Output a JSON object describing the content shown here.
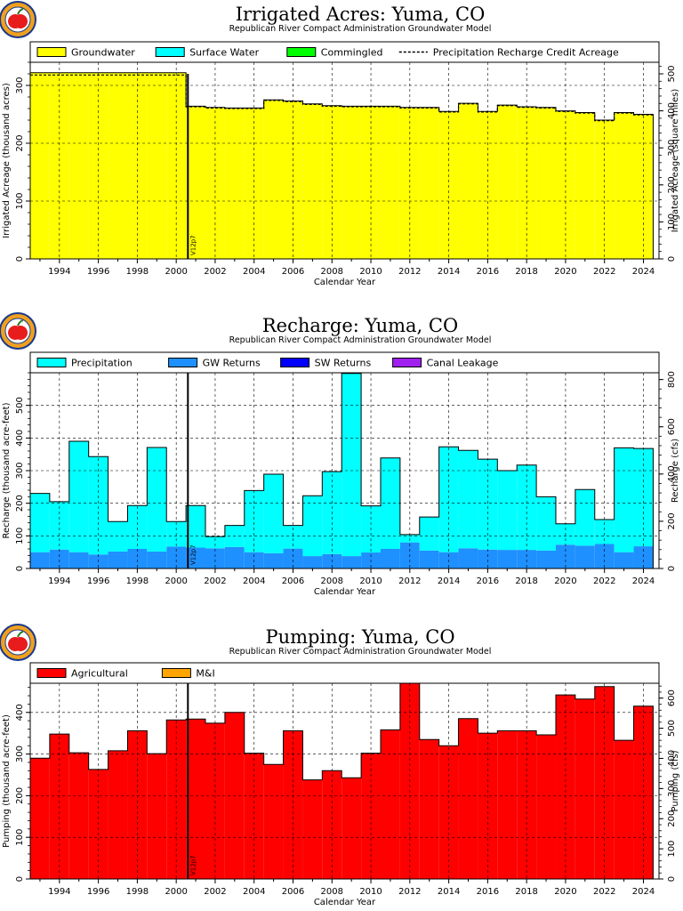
{
  "colors": {
    "groundwater": "#ffff00",
    "surface_water": "#00ffff",
    "commingled": "#00ff00",
    "precipitation": "#00ffff",
    "gw_returns": "#1e90ff",
    "sw_returns": "#0000ff",
    "canal_leakage": "#a020f0",
    "agricultural": "#ff0000",
    "mi": "#ffa500",
    "logo_red": "#e81c1c",
    "logo_ring": "#f0a020",
    "logo_border": "#1a3a8a"
  },
  "logo_icon": "apple-logo-icon",
  "chart_data": [
    {
      "type": "bar",
      "title": "Irrigated Acres: Yuma, CO",
      "subtitle": "Republican River Compact Administration Groundwater Model",
      "xlabel": "Calendar Year",
      "ylabel": "Irrigated Acreage (thousand acres)",
      "y2label": "Irrigated Acreage (square miles)",
      "ylim": [
        0,
        340
      ],
      "yticks": [
        0,
        100,
        200,
        300
      ],
      "y2lim": [
        0,
        531.25
      ],
      "y2ticks": [
        0,
        100,
        200,
        300,
        400,
        500
      ],
      "xlim": [
        1992.5,
        2024.8
      ],
      "xticks": [
        1994,
        1996,
        1998,
        2000,
        2002,
        2004,
        2006,
        2008,
        2010,
        2012,
        2014,
        2016,
        2018,
        2020,
        2022,
        2024
      ],
      "grid": true,
      "legend_position": "top",
      "legend": [
        "Groundwater",
        "Surface Water",
        "Commingled",
        "Precipitation Recharge Credit Acreage"
      ],
      "version_marker": {
        "x": 2000.6,
        "label": "V12p7"
      },
      "x": [
        1993,
        1994,
        1995,
        1996,
        1997,
        1998,
        1999,
        2000,
        2001,
        2002,
        2003,
        2004,
        2005,
        2006,
        2007,
        2008,
        2009,
        2010,
        2011,
        2012,
        2013,
        2014,
        2015,
        2016,
        2017,
        2018,
        2019,
        2020,
        2021,
        2022,
        2023,
        2024
      ],
      "series": [
        {
          "name": "Groundwater",
          "color_key": "groundwater",
          "values": [
            322,
            322,
            322,
            322,
            322,
            322,
            322,
            322,
            264,
            262,
            261,
            261,
            275,
            273,
            268,
            265,
            264,
            264,
            264,
            262,
            262,
            255,
            269,
            255,
            266,
            263,
            262,
            256,
            253,
            240,
            253,
            250
          ]
        },
        {
          "name": "Surface Water",
          "color_key": "surface_water",
          "values": [
            0,
            0,
            0,
            0,
            0,
            0,
            0,
            0,
            0,
            0,
            0,
            0,
            0,
            0,
            0,
            0,
            0,
            0,
            0,
            0,
            0,
            0,
            0,
            0,
            0,
            0,
            0,
            0,
            0,
            0,
            0,
            0
          ]
        },
        {
          "name": "Commingled",
          "color_key": "commingled",
          "values": [
            0,
            0,
            0,
            0,
            0,
            0,
            0,
            0,
            0,
            0,
            0,
            0,
            0,
            0,
            0,
            0,
            0,
            0,
            0,
            0,
            0,
            0,
            0,
            0,
            0,
            0,
            0,
            0,
            0,
            0,
            0,
            0
          ]
        }
      ],
      "line_series": {
        "name": "Precipitation Recharge Credit Acreage",
        "values": [
          318,
          318,
          318,
          318,
          318,
          318,
          318,
          318,
          263,
          261,
          260,
          260,
          274,
          272,
          267,
          264,
          263,
          263,
          263,
          261,
          261,
          254,
          268,
          254,
          265,
          262,
          261,
          255,
          252,
          239,
          252,
          249
        ]
      }
    },
    {
      "type": "bar",
      "title": "Recharge: Yuma, CO",
      "subtitle": "Republican River Compact Administration Groundwater Model",
      "xlabel": "Calendar Year",
      "ylabel": "Recharge (thousand acre-feet)",
      "y2label": "Recharge (cfs)",
      "ylim": [
        0,
        600
      ],
      "yticks": [
        0,
        100,
        200,
        300,
        400,
        500
      ],
      "y2lim": [
        0,
        828.75
      ],
      "y2ticks": [
        0,
        200,
        400,
        600,
        800
      ],
      "xlim": [
        1992.5,
        2024.8
      ],
      "xticks": [
        1994,
        1996,
        1998,
        2000,
        2002,
        2004,
        2006,
        2008,
        2010,
        2012,
        2014,
        2016,
        2018,
        2020,
        2022,
        2024
      ],
      "grid": true,
      "legend_position": "top",
      "legend": [
        "Precipitation",
        "GW Returns",
        "SW Returns",
        "Canal Leakage"
      ],
      "version_marker": {
        "x": 2000.6,
        "label": "V12p7"
      },
      "x": [
        1993,
        1994,
        1995,
        1996,
        1997,
        1998,
        1999,
        2000,
        2001,
        2002,
        2003,
        2004,
        2005,
        2006,
        2007,
        2008,
        2009,
        2010,
        2011,
        2012,
        2013,
        2014,
        2015,
        2016,
        2017,
        2018,
        2019,
        2020,
        2021,
        2022,
        2023,
        2024
      ],
      "series": [
        {
          "name": "GW Returns",
          "color_key": "gw_returns",
          "values": [
            50,
            58,
            50,
            43,
            52,
            60,
            52,
            67,
            64,
            62,
            66,
            50,
            47,
            61,
            38,
            44,
            38,
            49,
            60,
            80,
            55,
            50,
            62,
            58,
            57,
            57,
            55,
            73,
            70,
            75,
            50,
            68
          ]
        },
        {
          "name": "SW Returns",
          "color_key": "sw_returns",
          "values": [
            0,
            0,
            0,
            0,
            0,
            0,
            0,
            0,
            0,
            0,
            0,
            0,
            0,
            0,
            0,
            0,
            0,
            0,
            0,
            0,
            0,
            0,
            0,
            0,
            0,
            0,
            0,
            0,
            0,
            0,
            0,
            0
          ]
        },
        {
          "name": "Canal Leakage",
          "color_key": "canal_leakage",
          "values": [
            0,
            0,
            0,
            0,
            0,
            0,
            0,
            0,
            0,
            0,
            0,
            0,
            0,
            0,
            0,
            0,
            0,
            0,
            0,
            0,
            0,
            0,
            0,
            0,
            0,
            0,
            0,
            0,
            0,
            0,
            0,
            0
          ]
        },
        {
          "name": "Precipitation",
          "color_key": "precipitation",
          "values": [
            180,
            147,
            340,
            300,
            92,
            133,
            319,
            77,
            129,
            36,
            66,
            189,
            242,
            71,
            185,
            253,
            560,
            143,
            279,
            24,
            103,
            323,
            300,
            277,
            243,
            260,
            165,
            64,
            172,
            75,
            320,
            300
          ]
        }
      ]
    },
    {
      "type": "bar",
      "title": "Pumping: Yuma, CO",
      "subtitle": "Republican River Compact Administration Groundwater Model",
      "xlabel": "Calendar Year",
      "ylabel": "Pumping (thousand acre-feet)",
      "y2label": "Pumping (cfs)",
      "ylim": [
        0,
        470
      ],
      "yticks": [
        0,
        100,
        200,
        300,
        400
      ],
      "y2lim": [
        0,
        649.3
      ],
      "y2ticks": [
        0,
        100,
        200,
        300,
        400,
        500,
        600
      ],
      "xlim": [
        1992.5,
        2024.8
      ],
      "xticks": [
        1994,
        1996,
        1998,
        2000,
        2002,
        2004,
        2006,
        2008,
        2010,
        2012,
        2014,
        2016,
        2018,
        2020,
        2022,
        2024
      ],
      "grid": true,
      "legend_position": "top",
      "legend": [
        "Agricultural",
        "M&I"
      ],
      "version_marker": {
        "x": 2000.6,
        "label": "V12p7"
      },
      "x": [
        1993,
        1994,
        1995,
        1996,
        1997,
        1998,
        1999,
        2000,
        2001,
        2002,
        2003,
        2004,
        2005,
        2006,
        2007,
        2008,
        2009,
        2010,
        2011,
        2012,
        2013,
        2014,
        2015,
        2016,
        2017,
        2018,
        2019,
        2020,
        2021,
        2022,
        2023,
        2024
      ],
      "series": [
        {
          "name": "Agricultural",
          "color_key": "agricultural",
          "values": [
            290,
            348,
            303,
            263,
            308,
            356,
            301,
            382,
            384,
            374,
            400,
            302,
            275,
            356,
            238,
            260,
            243,
            302,
            358,
            470,
            335,
            320,
            385,
            350,
            356,
            356,
            346,
            442,
            432,
            462,
            333,
            415
          ]
        },
        {
          "name": "M&I",
          "color_key": "mi",
          "values": [
            0,
            0,
            0,
            0,
            0,
            0,
            0,
            0,
            0,
            0,
            0,
            0,
            0,
            0,
            0,
            0,
            0,
            0,
            0,
            0,
            0,
            0,
            0,
            0,
            0,
            0,
            0,
            0,
            0,
            0,
            0,
            0
          ]
        }
      ]
    }
  ]
}
